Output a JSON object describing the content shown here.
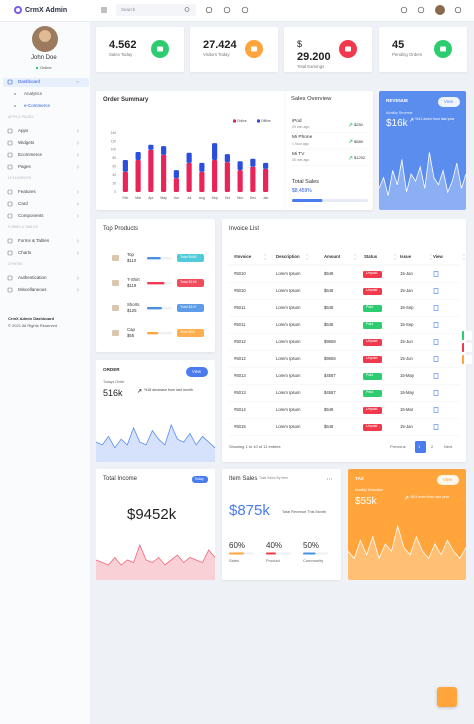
{
  "topbar": {
    "brand": "CrmX Admin",
    "search_placeholder": "Search"
  },
  "sidebar": {
    "user": {
      "name": "John Doe",
      "status": "Online"
    },
    "menu": [
      {
        "label": "Dashboard",
        "kind": "item",
        "active": true
      },
      {
        "label": "Analytics",
        "kind": "sub"
      },
      {
        "label": "e-Commerce",
        "kind": "sub"
      },
      {
        "label": "APPS & PAGES",
        "kind": "section"
      },
      {
        "label": "Apps",
        "kind": "item"
      },
      {
        "label": "Widgets",
        "kind": "item"
      },
      {
        "label": "Ecommerce",
        "kind": "item"
      },
      {
        "label": "Pages",
        "kind": "item"
      },
      {
        "label": "UI ELEMENTS",
        "kind": "section"
      },
      {
        "label": "Features",
        "kind": "item"
      },
      {
        "label": "Card",
        "kind": "item"
      },
      {
        "label": "Components",
        "kind": "item"
      },
      {
        "label": "FORMS & TABLES",
        "kind": "section"
      },
      {
        "label": "Forms & Tables",
        "kind": "item"
      },
      {
        "label": "Charts",
        "kind": "item"
      },
      {
        "label": "OTHERS",
        "kind": "section"
      },
      {
        "label": "Authentication",
        "kind": "item"
      },
      {
        "label": "Miscellaneous",
        "kind": "item"
      }
    ],
    "footer": {
      "title": "CrmX Admin Dashboard",
      "copyright": "© 2021 All Rights Reserved"
    }
  },
  "stats": [
    {
      "value": "4.562",
      "label": "Sales Today",
      "color": "#2ecc71"
    },
    {
      "value": "27.424",
      "label": "Visitors Today",
      "color": "#ffa53b"
    },
    {
      "currency": "$",
      "value": "29.200",
      "label": "Total Earnings",
      "color": "#f0394d"
    },
    {
      "value": "45",
      "label": "Pending Orders",
      "color": "#2ecc71"
    }
  ],
  "order_summary": {
    "title": "Order Summary",
    "chart": {
      "type": "bar",
      "stacked": true,
      "categories": [
        "Feb",
        "Mar",
        "Apr",
        "May",
        "Jun",
        "Jul",
        "Aug",
        "Sep",
        "Oct",
        "Nov",
        "Dec",
        "Jan"
      ],
      "series": [
        {
          "name": "Online",
          "color": "#e8245b",
          "values": [
            48,
            76,
            100,
            88,
            33,
            69,
            48,
            76,
            71,
            52,
            60,
            55
          ]
        },
        {
          "name": "Offline",
          "color": "#2b4ee0",
          "values": [
            28,
            19,
            12,
            21,
            19,
            24,
            21,
            40,
            19,
            21,
            19,
            14
          ]
        }
      ],
      "ylim": [
        0,
        140
      ],
      "yticks": [
        0,
        20,
        40,
        60,
        80,
        100,
        120,
        140
      ]
    }
  },
  "sales_overview": {
    "title": "Sales Overview",
    "items": [
      {
        "name": "iPod",
        "time": "29 min ago",
        "amount": "$250"
      },
      {
        "name": "Mi Phone",
        "time": "1 hour ago",
        "amount": "$589"
      },
      {
        "name": "Mi TV",
        "time": "30 min ago",
        "amount": "$1292"
      }
    ],
    "total_label": "Total Sales",
    "total_value": "$8,459%",
    "progress": 40,
    "progress_range": [
      0,
      100
    ]
  },
  "revenue": {
    "title": "REVENUE",
    "button": "View",
    "subtitle": "Monthly Revenue",
    "value": "$16k",
    "trend": "%41 down from last year",
    "spark": {
      "values": [
        30,
        45,
        20,
        55,
        35,
        70,
        25,
        50,
        40,
        60,
        30,
        80,
        45,
        35,
        55,
        25,
        40,
        65,
        30,
        50
      ],
      "ylim": [
        0,
        100
      ]
    }
  },
  "top_products": {
    "title": "Top Products",
    "progress_range": [
      0,
      100
    ],
    "items": [
      {
        "name": "Top",
        "price": "$110",
        "total": "Total $480",
        "progress": 55,
        "color": "#4a90e2",
        "badge_color": "#3dc5d5"
      },
      {
        "name": "T-Shirt",
        "price": "$119",
        "total": "Total $194",
        "progress": 70,
        "color": "#f0394d",
        "badge_color": "#f0394d"
      },
      {
        "name": "Shorts",
        "price": "$125",
        "total": "Total $107",
        "progress": 60,
        "color": "#4a90e2",
        "badge_color": "#4a90e2"
      },
      {
        "name": "Cap",
        "price": "$55",
        "total": "Total $55",
        "progress": 45,
        "color": "#ffa53b",
        "badge_color": "#ffa53b"
      }
    ]
  },
  "invoice_list": {
    "title": "Invoice List",
    "headers": [
      "#Invoice",
      "Description",
      "Amount",
      "Status",
      "Issue",
      "View"
    ],
    "rows": [
      {
        "invoice": "#5010",
        "description": "Lorem Ipsum",
        "amount": "$548",
        "status": "Unpaid",
        "status_color": "#f0394d",
        "issue": "15-Jan"
      },
      {
        "invoice": "#5010",
        "description": "Lorem Ipsum",
        "amount": "$548",
        "status": "Unpaid",
        "status_color": "#f0394d",
        "issue": "15-Jan"
      },
      {
        "invoice": "#5011",
        "description": "Lorem Ipsum",
        "amount": "$548",
        "status": "Paid",
        "status_color": "#2ecc71",
        "issue": "15-Sep"
      },
      {
        "invoice": "#5011",
        "description": "Lorem Ipsum",
        "amount": "$548",
        "status": "Paid",
        "status_color": "#2ecc71",
        "issue": "15-Sep"
      },
      {
        "invoice": "#5012",
        "description": "Lorem Ipsum",
        "amount": "$9658",
        "status": "Unpaid",
        "status_color": "#f0394d",
        "issue": "15-Jun"
      },
      {
        "invoice": "#5012",
        "description": "Lorem Ipsum",
        "amount": "$9658",
        "status": "Unpaid",
        "status_color": "#f0394d",
        "issue": "15-Jun"
      },
      {
        "invoice": "#5013",
        "description": "Lorem Ipsum",
        "amount": "$4587",
        "status": "Paid",
        "status_color": "#2ecc71",
        "issue": "15-May"
      },
      {
        "invoice": "#5013",
        "description": "Lorem Ipsum",
        "amount": "$4587",
        "status": "Paid",
        "status_color": "#2ecc71",
        "issue": "15-May"
      },
      {
        "invoice": "#5014",
        "description": "Lorem Ipsum",
        "amount": "$548",
        "status": "Unpaid",
        "status_color": "#f0394d",
        "issue": "15-Mar"
      },
      {
        "invoice": "#5015",
        "description": "Lorem Ipsum",
        "amount": "$548",
        "status": "Unpaid",
        "status_color": "#f0394d",
        "issue": "15-Jan"
      }
    ],
    "info": "Showing 1 to 10 of 11 entries",
    "pagination": [
      "Previous",
      "1",
      "2",
      "Next"
    ]
  },
  "order": {
    "title": "ORDER",
    "button": "View",
    "subtitle": "Todays Order",
    "value": "516k",
    "trend": "%18 decrease from last month",
    "spark": {
      "values": [
        35,
        30,
        45,
        25,
        40,
        30,
        60,
        35,
        30,
        55,
        40,
        30,
        65,
        40,
        35,
        50,
        30,
        45,
        35,
        25
      ],
      "ylim": [
        0,
        100
      ]
    }
  },
  "total_income": {
    "title": "Total Income",
    "badge": "Today",
    "value": "$9452k",
    "spark": {
      "values": [
        40,
        35,
        30,
        45,
        30,
        40,
        35,
        70,
        40,
        35,
        45,
        30,
        40,
        50,
        35,
        45,
        40,
        35,
        60,
        45
      ],
      "ylim": [
        0,
        100
      ]
    }
  },
  "item_sales": {
    "title": "Item Sales",
    "subtitle": "Total Sales By Item",
    "value": "$875k",
    "value_caption": "Total Revenue This Month",
    "range": [
      0,
      100
    ],
    "items": [
      {
        "percent": 60,
        "percent_label": "60%",
        "label": "Sales",
        "color": "#ffa53b"
      },
      {
        "percent": 40,
        "percent_label": "40%",
        "label": "Product",
        "color": "#f0394d"
      },
      {
        "percent": 50,
        "percent_label": "50%",
        "label": "Community",
        "color": "#4a90e2"
      }
    ]
  },
  "tax": {
    "title": "TAX",
    "button": "View",
    "subtitle": "Monthly Deduction",
    "value": "$55k",
    "trend": "%24 more than last year",
    "spark": {
      "values": [
        40,
        30,
        55,
        35,
        60,
        30,
        50,
        40,
        75,
        45,
        35,
        60,
        40,
        30,
        50,
        35,
        55,
        40,
        30,
        45
      ],
      "ylim": [
        0,
        100
      ]
    }
  }
}
